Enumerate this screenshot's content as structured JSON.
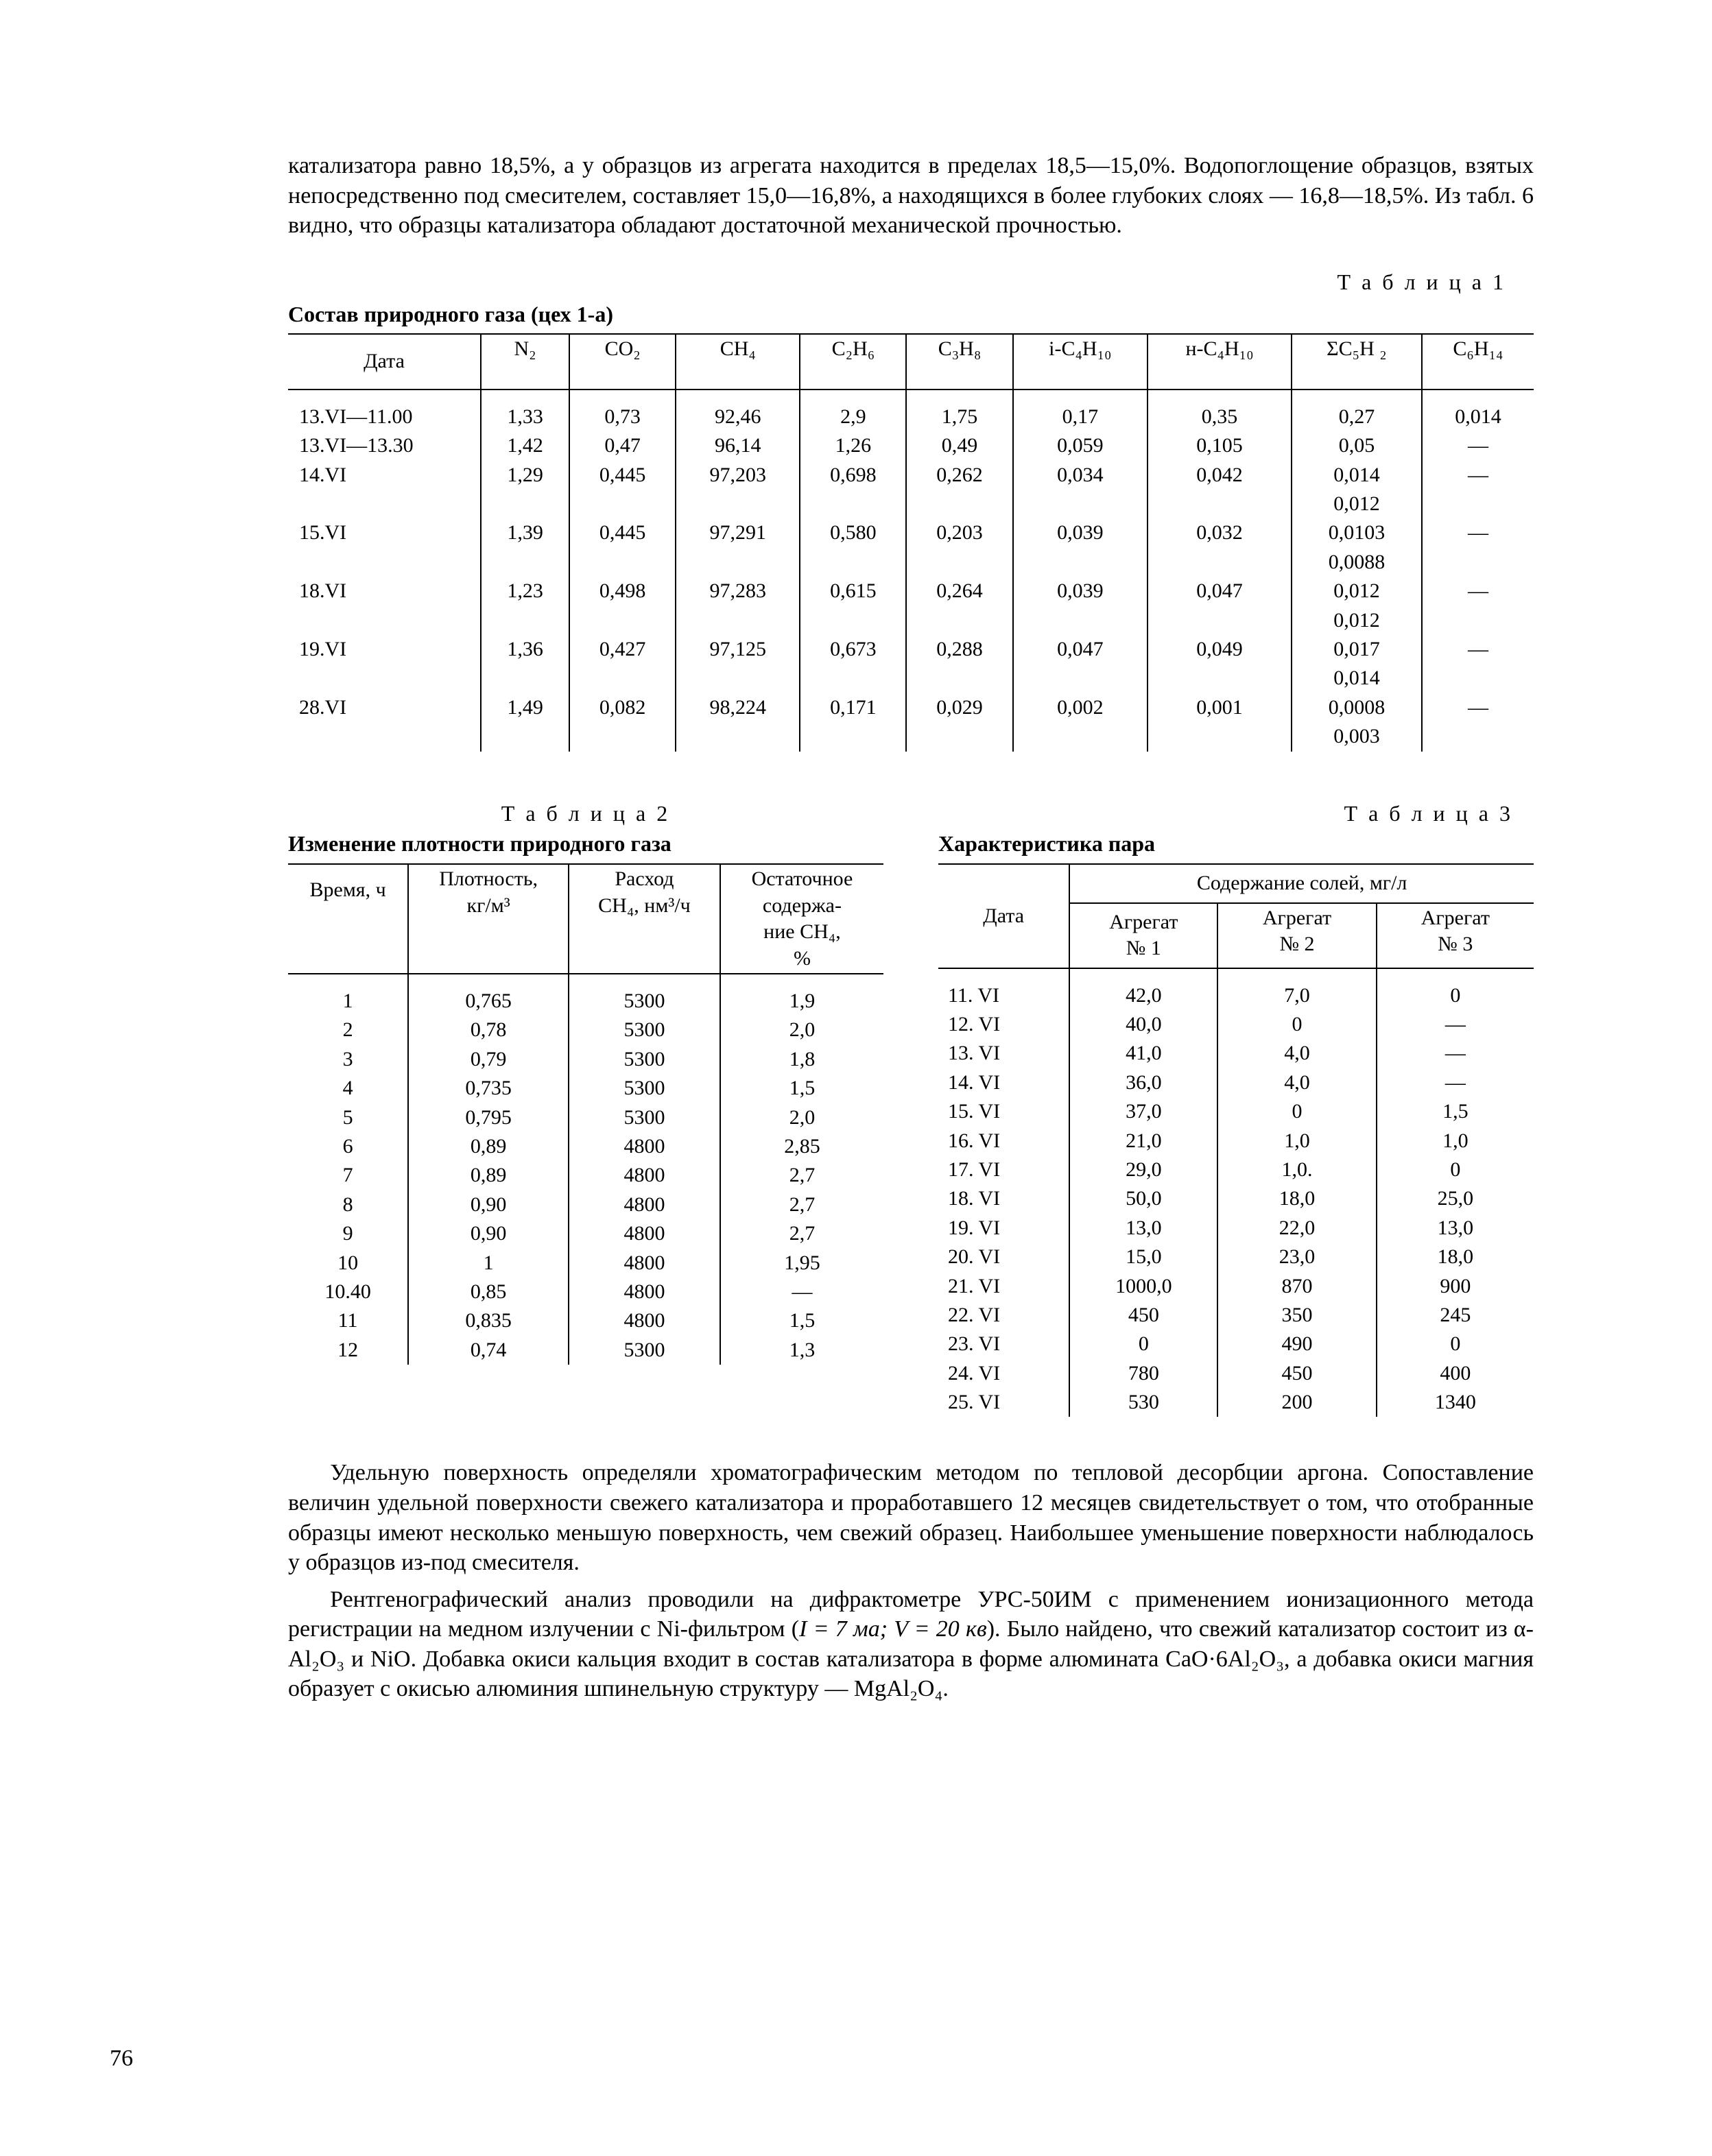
{
  "paragraph1": "катализатора равно 18,5%, а у образцов из агрегата находится в пределах 18,5—15,0%. Водопоглощение образцов, взятых непосредственно под смесителем, составляет 15,0—16,8%, а находящихся в более глубоких слоях — 16,8—18,5%. Из табл. 6 видно, что образцы катализатора обладают достаточной механической прочностью.",
  "table1": {
    "label": "Т а б л и ц а  1",
    "caption": "Состав природного газа (цех 1-а)",
    "headers": [
      "Дата",
      "N₂",
      "CO₂",
      "CH₄",
      "C₂H₆",
      "C₃H₈",
      "i-C₄H₁₀",
      "н-C₄H₁₀",
      "ΣC₅H ₂",
      "C₆H₁₄"
    ],
    "rows": [
      [
        "13.VI—11.00",
        "1,33",
        "0,73",
        "92,46",
        "2,9",
        "1,75",
        "0,17",
        "0,35",
        "0,27",
        "0,014"
      ],
      [
        "13.VI—13.30",
        "1,42",
        "0,47",
        "96,14",
        "1,26",
        "0,49",
        "0,059",
        "0,105",
        "0,05",
        "—"
      ],
      [
        "14.VI",
        "1,29",
        "0,445",
        "97,203",
        "0,698",
        "0,262",
        "0,034",
        "0,042",
        "0,014",
        "—"
      ],
      [
        "",
        "",
        "",
        "",
        "",
        "",
        "",
        "",
        "0,012",
        ""
      ],
      [
        "15.VI",
        "1,39",
        "0,445",
        "97,291",
        "0,580",
        "0,203",
        "0,039",
        "0,032",
        "0,0103",
        "—"
      ],
      [
        "",
        "",
        "",
        "",
        "",
        "",
        "",
        "",
        "0,0088",
        ""
      ],
      [
        "18.VI",
        "1,23",
        "0,498",
        "97,283",
        "0,615",
        "0,264",
        "0,039",
        "0,047",
        "0,012",
        "—"
      ],
      [
        "",
        "",
        "",
        "",
        "",
        "",
        "",
        "",
        "0,012",
        ""
      ],
      [
        "19.VI",
        "1,36",
        "0,427",
        "97,125",
        "0,673",
        "0,288",
        "0,047",
        "0,049",
        "0,017",
        "—"
      ],
      [
        "",
        "",
        "",
        "",
        "",
        "",
        "",
        "",
        "0,014",
        ""
      ],
      [
        "28.VI",
        "1,49",
        "0,082",
        "98,224",
        "0,171",
        "0,029",
        "0,002",
        "0,001",
        "0,0008",
        "—"
      ],
      [
        "",
        "",
        "",
        "",
        "",
        "",
        "",
        "",
        "0,003",
        ""
      ]
    ]
  },
  "table2": {
    "label": "Т а б л и ц а  2",
    "caption": "Изменение плотности природного газа",
    "headers": [
      "Время, ч",
      "Плотность,\nкг/м³",
      "Расход\nCH₄, нм³/ч",
      "Остаточное\nсодержа-\nние CH₄,\n%"
    ],
    "rows": [
      [
        "1",
        "0,765",
        "5300",
        "1,9"
      ],
      [
        "2",
        "0,78",
        "5300",
        "2,0"
      ],
      [
        "3",
        "0,79",
        "5300",
        "1,8"
      ],
      [
        "4",
        "0,735",
        "5300",
        "1,5"
      ],
      [
        "5",
        "0,795",
        "5300",
        "2,0"
      ],
      [
        "6",
        "0,89",
        "4800",
        "2,85"
      ],
      [
        "7",
        "0,89",
        "4800",
        "2,7"
      ],
      [
        "8",
        "0,90",
        "4800",
        "2,7"
      ],
      [
        "9",
        "0,90",
        "4800",
        "2,7"
      ],
      [
        "10",
        "1",
        "4800",
        "1,95"
      ],
      [
        "10.40",
        "0,85",
        "4800",
        "—"
      ],
      [
        "11",
        "0,835",
        "4800",
        "1,5"
      ],
      [
        "12",
        "0,74",
        "5300",
        "1,3"
      ]
    ]
  },
  "table3": {
    "label": "Т а б л и ц а  3",
    "caption": "Характеристика пара",
    "group_header": "Содержание солей, мг/л",
    "headers": [
      "Дата",
      "Агрегат\n№ 1",
      "Агрегат\n№ 2",
      "Агрегат\n№ 3"
    ],
    "rows": [
      [
        "11. VI",
        "42,0",
        "7,0",
        "0"
      ],
      [
        "12. VI",
        "40,0",
        "0",
        "—"
      ],
      [
        "13. VI",
        "41,0",
        "4,0",
        "—"
      ],
      [
        "14. VI",
        "36,0",
        "4,0",
        "—"
      ],
      [
        "15. VI",
        "37,0",
        "0",
        "1,5"
      ],
      [
        "16. VI",
        "21,0",
        "1,0",
        "1,0"
      ],
      [
        "17. VI",
        "29,0",
        "1,0.",
        "0"
      ],
      [
        "18. VI",
        "50,0",
        "18,0",
        "25,0"
      ],
      [
        "19. VI",
        "13,0",
        "22,0",
        "13,0"
      ],
      [
        "20. VI",
        "15,0",
        "23,0",
        "18,0"
      ],
      [
        "21. VI",
        "1000,0",
        "870",
        "900"
      ],
      [
        "22. VI",
        "450",
        "350",
        "245"
      ],
      [
        "23. VI",
        "0",
        "490",
        "0"
      ],
      [
        "24. VI",
        "780",
        "450",
        "400"
      ],
      [
        "25. VI",
        "530",
        "200",
        "1340"
      ]
    ]
  },
  "paragraph2": "Удельную поверхность определяли хроматографическим методом по тепловой десорбции аргона. Сопоставление величин удельной поверхности свежего катализатора и проработавшего 12 месяцев свидетельствует о том, что отобранные образцы имеют несколько меньшую поверхность, чем свежий образец. Наибольшее уменьшение поверхности наблюдалось у образцов из-под смесителя.",
  "paragraph3_a": "Рентгенографический анализ проводили на дифрактометре УРС-50ИМ с применением ионизационного метода регистрации на медном излучении с Ni-фильтром (",
  "paragraph3_ital": "I = 7 ма;  V = 20 кв",
  "paragraph3_b": "). Было найдено, что свежий катализатор состоит из α-Al₂O₃ и NiO. Добавка окиси кальция входит в состав катализатора в форме алюмината CaO·6Al₂O₃, а добавка окиси магния образует с окисью алюминия шпинельную структуру — MgAl₂O₄.",
  "page_number": "76"
}
